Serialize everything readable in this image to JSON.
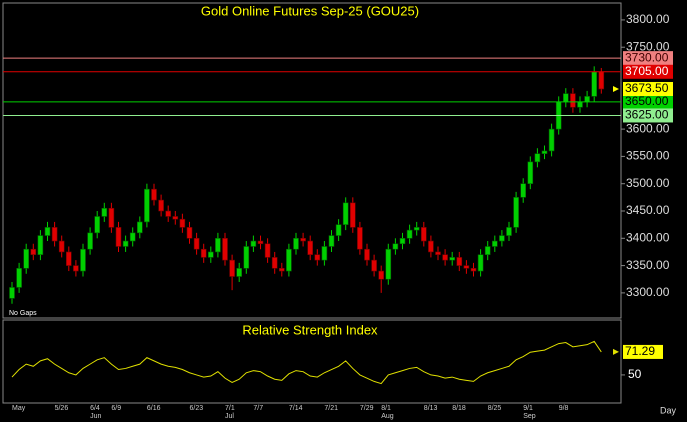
{
  "chart_data": [
    {
      "type": "candlestick",
      "title": "Gold Online Futures Sep-25 (GOU25)",
      "note": "No Gaps",
      "categories": [
        "May",
        null,
        null,
        null,
        null,
        null,
        "5/26",
        null,
        null,
        null,
        null,
        "6/4",
        null,
        null,
        "6/9",
        null,
        null,
        null,
        null,
        "6/16",
        null,
        null,
        null,
        null,
        null,
        "6/23",
        null,
        null,
        null,
        null,
        "7/1",
        null,
        null,
        null,
        "7/7",
        null,
        null,
        null,
        null,
        "7/14",
        null,
        null,
        null,
        null,
        "7/21",
        null,
        null,
        null,
        null,
        "7/29",
        null,
        null,
        "8/1",
        null,
        null,
        null,
        null,
        null,
        "8/13",
        null,
        null,
        null,
        "8/18",
        null,
        null,
        null,
        null,
        "8/25",
        null,
        null,
        null,
        null,
        "9/1",
        null,
        null,
        null,
        null,
        "9/8",
        null,
        null,
        null,
        null,
        null,
        null
      ],
      "month_labels": [
        {
          "value": 11,
          "label": "Jun"
        },
        {
          "value": 30,
          "label": "Jul"
        },
        {
          "value": 52,
          "label": "Aug"
        },
        {
          "value": 72,
          "label": "Sep"
        }
      ],
      "open": [
        3290,
        3310,
        3345,
        3380,
        3370,
        3405,
        3420,
        3395,
        3375,
        3350,
        3340,
        3380,
        3410,
        3440,
        3455,
        3420,
        3385,
        3395,
        3410,
        3430,
        3490,
        3470,
        3450,
        3440,
        3435,
        3420,
        3400,
        3380,
        3365,
        3375,
        3400,
        3360,
        3330,
        3345,
        3385,
        3395,
        3390,
        3365,
        3345,
        3340,
        3380,
        3400,
        3395,
        3370,
        3360,
        3385,
        3405,
        3425,
        3465,
        3420,
        3380,
        3360,
        3340,
        3325,
        3380,
        3390,
        3400,
        3415,
        3420,
        3395,
        3375,
        3370,
        3360,
        3365,
        3350,
        3345,
        3340,
        3370,
        3385,
        3395,
        3405,
        3420,
        3475,
        3500,
        3540,
        3555,
        3560,
        3600,
        3650,
        3665,
        3640,
        3650,
        3660,
        3705
      ],
      "high": [
        3320,
        3355,
        3390,
        3390,
        3415,
        3430,
        3430,
        3405,
        3385,
        3360,
        3390,
        3420,
        3450,
        3465,
        3465,
        3430,
        3405,
        3420,
        3440,
        3500,
        3500,
        3480,
        3460,
        3450,
        3445,
        3430,
        3410,
        3390,
        3385,
        3410,
        3410,
        3370,
        3355,
        3395,
        3405,
        3405,
        3400,
        3375,
        3355,
        3390,
        3410,
        3410,
        3405,
        3380,
        3395,
        3415,
        3435,
        3475,
        3475,
        3430,
        3390,
        3370,
        3350,
        3390,
        3400,
        3410,
        3425,
        3430,
        3430,
        3405,
        3385,
        3380,
        3375,
        3375,
        3360,
        3355,
        3380,
        3395,
        3405,
        3415,
        3430,
        3485,
        3510,
        3550,
        3565,
        3570,
        3610,
        3660,
        3675,
        3675,
        3660,
        3670,
        3715,
        3712
      ],
      "low": [
        3280,
        3300,
        3335,
        3360,
        3360,
        3395,
        3385,
        3365,
        3340,
        3330,
        3330,
        3370,
        3400,
        3430,
        3410,
        3375,
        3375,
        3385,
        3400,
        3420,
        3460,
        3440,
        3430,
        3425,
        3410,
        3390,
        3370,
        3355,
        3355,
        3365,
        3350,
        3305,
        3320,
        3335,
        3375,
        3380,
        3355,
        3335,
        3330,
        3330,
        3370,
        3385,
        3360,
        3350,
        3350,
        3375,
        3395,
        3415,
        3410,
        3370,
        3350,
        3330,
        3300,
        3315,
        3370,
        3380,
        3390,
        3405,
        3385,
        3365,
        3360,
        3350,
        3350,
        3340,
        3335,
        3330,
        3330,
        3360,
        3375,
        3385,
        3395,
        3410,
        3465,
        3490,
        3530,
        3545,
        3550,
        3590,
        3640,
        3630,
        3630,
        3640,
        3650,
        3665
      ],
      "close": [
        3310,
        3345,
        3380,
        3370,
        3405,
        3420,
        3395,
        3375,
        3350,
        3340,
        3380,
        3410,
        3440,
        3455,
        3420,
        3385,
        3395,
        3410,
        3430,
        3490,
        3470,
        3450,
        3440,
        3435,
        3420,
        3400,
        3380,
        3365,
        3375,
        3400,
        3360,
        3330,
        3345,
        3385,
        3395,
        3390,
        3365,
        3345,
        3340,
        3380,
        3400,
        3395,
        3370,
        3360,
        3385,
        3405,
        3425,
        3465,
        3420,
        3380,
        3360,
        3340,
        3325,
        3380,
        3390,
        3400,
        3415,
        3420,
        3395,
        3375,
        3370,
        3360,
        3365,
        3350,
        3345,
        3340,
        3370,
        3385,
        3395,
        3405,
        3420,
        3475,
        3500,
        3540,
        3555,
        3560,
        3600,
        3650,
        3665,
        3640,
        3650,
        3660,
        3705,
        3673.5
      ],
      "up_color": "#00d000",
      "down_color": "#e00000",
      "ylim": [
        3254,
        3831
      ],
      "yticks": [
        {
          "value": 3800,
          "label": "3800.00"
        },
        {
          "value": 3750,
          "label": "3750.00"
        },
        {
          "value": 3600,
          "label": "3600.00"
        },
        {
          "value": 3550,
          "label": "3550.00"
        },
        {
          "value": 3500,
          "label": "3500.00"
        },
        {
          "value": 3450,
          "label": "3450.00"
        },
        {
          "value": 3400,
          "label": "3400.00"
        },
        {
          "value": 3350,
          "label": "3350.00"
        },
        {
          "value": 3300,
          "label": "3300.00"
        }
      ],
      "levels": [
        {
          "value": 3730,
          "label": "3730.00",
          "color": "#f08080",
          "text_color": "#400000"
        },
        {
          "value": 3705,
          "label": "3705.00",
          "color": "#e00000",
          "text_color": "#ffffff"
        },
        {
          "value": 3650,
          "label": "3650.00",
          "color": "#00d000",
          "text_color": "#000000"
        },
        {
          "value": 3625,
          "label": "3625.00",
          "color": "#90ee90",
          "text_color": "#000000"
        }
      ],
      "last_price": {
        "value": 3673.5,
        "label": "3673.50",
        "color": "#ffff00"
      }
    },
    {
      "type": "line",
      "title": "Relative Strength Index",
      "xlabel": "Day",
      "values": [
        48,
        55,
        60,
        58,
        63,
        65,
        60,
        56,
        52,
        50,
        56,
        60,
        64,
        66,
        60,
        55,
        56,
        58,
        60,
        66,
        63,
        60,
        58,
        57,
        55,
        52,
        50,
        48,
        49,
        53,
        47,
        43,
        46,
        52,
        54,
        53,
        49,
        46,
        45,
        51,
        54,
        53,
        49,
        48,
        52,
        55,
        58,
        63,
        56,
        50,
        47,
        44,
        42,
        50,
        52,
        54,
        56,
        57,
        53,
        50,
        49,
        47,
        48,
        46,
        45,
        44,
        49,
        52,
        54,
        56,
        58,
        64,
        67,
        71,
        72,
        73,
        76,
        79,
        80,
        76,
        77,
        78,
        81,
        71.29
      ],
      "color": "#e0e000",
      "ylim": [
        24,
        99
      ],
      "yticks": [
        50
      ]
    }
  ]
}
